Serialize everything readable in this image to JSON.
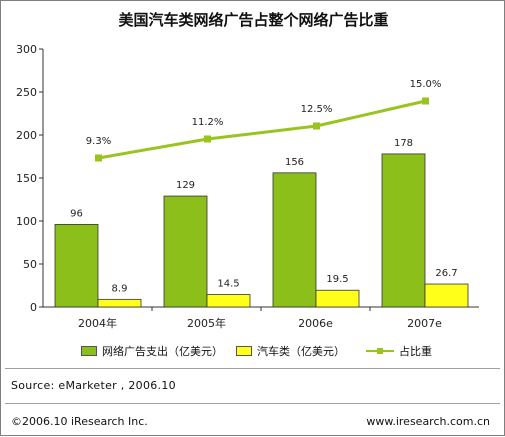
{
  "chart_data": {
    "type": "bar",
    "title": "美国汽车类网络广告占整个网络广告比重",
    "categories": [
      "2004年",
      "2005年",
      "2006e",
      "2007e"
    ],
    "series": [
      {
        "name": "网络广告支出（亿美元）",
        "type": "bar",
        "color": "#8cbf1a",
        "values": [
          96,
          129,
          156,
          178
        ],
        "labels": [
          "96",
          "129",
          "156",
          "178"
        ]
      },
      {
        "name": "汽车类（亿美元）",
        "type": "bar",
        "color": "#ffff1a",
        "values": [
          8.9,
          14.5,
          19.5,
          26.7
        ],
        "labels": [
          "8.9",
          "14.5",
          "19.5",
          "26.7"
        ]
      },
      {
        "name": "占比重",
        "type": "line",
        "color": "#99c31f",
        "values": [
          9.3,
          11.2,
          12.5,
          15.0
        ],
        "labels": [
          "9.3%",
          "11.2%",
          "12.5%",
          "15.0%"
        ]
      }
    ],
    "ylim": [
      0,
      300
    ],
    "yticks": [
      "0",
      "50",
      "100",
      "150",
      "200",
      "250",
      "300"
    ],
    "grid": false,
    "legend_position": "bottom"
  },
  "source": "Source:  eMarketer , 2006.10",
  "copyright": "©2006.10 iResearch Inc.",
  "website": "www.iresearch.com.cn"
}
